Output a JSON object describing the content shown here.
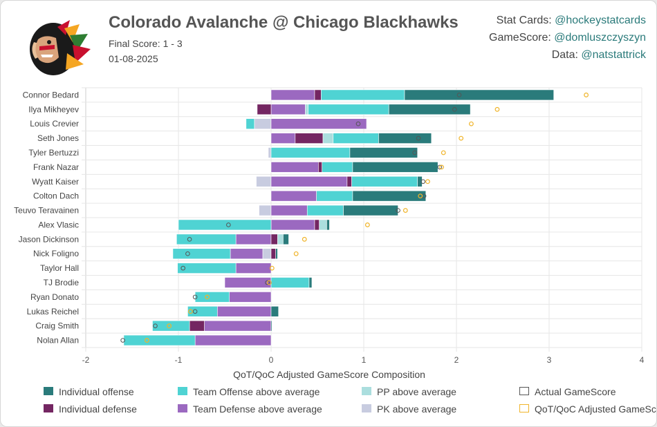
{
  "header": {
    "title": "Colorado Avalanche @ Chicago Blackhawks",
    "final_score": "Final Score: 1 - 3",
    "date": "01-08-2025"
  },
  "credits": [
    {
      "label": "Stat Cards:",
      "handle": "@hockeystatcards"
    },
    {
      "label": "GameScore:",
      "handle": "@domluszczyszyn"
    },
    {
      "label": "Data:",
      "handle": "@natstattrick"
    }
  ],
  "colors": {
    "individual_offense": "#2a7b7b",
    "individual_defense": "#742662",
    "team_offense": "#4fd3d3",
    "team_defense": "#9b69c0",
    "pp": "#abdede",
    "pk": "#c8cce0",
    "actual_marker": "#555555",
    "adjusted_marker": "#f0b429",
    "grid": "#e6e6e6"
  },
  "chart_data": {
    "type": "bar",
    "stacked": true,
    "orientation": "horizontal",
    "xlabel": "QoT/QoC Adjusted GameScore Composition",
    "xlim": [
      -2,
      4
    ],
    "xticks": [
      "-2",
      "-1",
      "0",
      "1",
      "2",
      "3",
      "4"
    ],
    "categories": [
      "Connor Bedard",
      "Ilya Mikheyev",
      "Louis Crevier",
      "Seth Jones",
      "Tyler Bertuzzi",
      "Frank Nazar",
      "Wyatt Kaiser",
      "Colton Dach",
      "Teuvo Teravainen",
      "Alex Vlasic",
      "Jason Dickinson",
      "Nick Foligno",
      "Taylor Hall",
      "TJ Brodie",
      "Ryan Donato",
      "Lukas Reichel",
      "Craig Smith",
      "Nolan Allan"
    ],
    "segment_order": [
      "pk",
      "team_defense",
      "individual_defense",
      "pp",
      "team_offense",
      "individual_offense"
    ],
    "series": [
      {
        "key": "team_defense",
        "name": "Team Defense above average",
        "values": [
          0.47,
          0.37,
          1.03,
          0.26,
          0.0,
          0.51,
          0.82,
          0.49,
          0.39,
          0.47,
          -0.38,
          -0.35,
          -0.38,
          -0.5,
          -0.45,
          -0.58,
          -0.72,
          -0.82
        ]
      },
      {
        "key": "individual_defense",
        "name": "Individual defense",
        "values": [
          0.07,
          -0.15,
          0.0,
          0.3,
          0.0,
          0.04,
          0.05,
          0.0,
          0.0,
          0.05,
          0.07,
          0.05,
          0.0,
          0.0,
          0.0,
          0.0,
          -0.16,
          0.0
        ]
      },
      {
        "key": "pp",
        "name": "PP above average",
        "values": [
          0.0,
          0.03,
          0.0,
          0.11,
          0.0,
          0.0,
          0.0,
          0.0,
          0.0,
          0.08,
          0.06,
          0.0,
          0.0,
          0.0,
          0.0,
          0.0,
          0.0,
          0.0
        ]
      },
      {
        "key": "pk",
        "name": "PK above average",
        "values": [
          0.0,
          0.0,
          -0.18,
          0.0,
          -0.03,
          0.0,
          -0.16,
          0.0,
          -0.13,
          0.0,
          0.0,
          -0.09,
          0.0,
          0.0,
          0.0,
          0.0,
          0.0,
          0.0
        ]
      },
      {
        "key": "team_offense",
        "name": "Team Offense above average",
        "values": [
          0.9,
          0.87,
          -0.09,
          0.49,
          0.85,
          0.33,
          0.71,
          0.39,
          0.39,
          -1.0,
          -0.64,
          -0.62,
          -0.63,
          0.41,
          -0.37,
          -0.32,
          -0.4,
          -0.77
        ]
      },
      {
        "key": "individual_offense",
        "name": "Individual offense",
        "values": [
          1.61,
          0.88,
          0.0,
          0.57,
          0.73,
          0.92,
          0.05,
          0.79,
          0.59,
          0.03,
          0.06,
          0.02,
          0.0,
          0.03,
          0.0,
          0.08,
          0.01,
          0.0
        ]
      }
    ],
    "actual_gamescore": [
      2.03,
      1.98,
      0.94,
      1.59,
      1.55,
      1.82,
      1.64,
      1.65,
      1.37,
      -0.46,
      -0.88,
      -0.9,
      -0.95,
      -0.04,
      -0.82,
      -0.82,
      -1.25,
      -1.6
    ],
    "adjusted_gamescore": [
      3.4,
      2.44,
      2.16,
      2.05,
      1.86,
      1.84,
      1.69,
      1.61,
      1.45,
      1.04,
      0.36,
      0.27,
      0.01,
      -0.02,
      -0.69,
      -0.87,
      -1.1,
      -1.34
    ],
    "legend": {
      "placement": "bottom",
      "items": [
        {
          "key": "individual_offense",
          "label": "Individual offense",
          "style": "fill"
        },
        {
          "key": "team_offense",
          "label": "Team Offense above average",
          "style": "fill"
        },
        {
          "key": "pp",
          "label": "PP above average",
          "style": "fill"
        },
        {
          "key": "actual_marker",
          "label": "Actual GameScore",
          "style": "outline"
        },
        {
          "key": "individual_defense",
          "label": "Individual defense",
          "style": "fill"
        },
        {
          "key": "team_defense",
          "label": "Team Defense above average",
          "style": "fill"
        },
        {
          "key": "pk",
          "label": "PK above average",
          "style": "fill"
        },
        {
          "key": "adjusted_marker",
          "label": "QoT/QoC Adjusted GameScore",
          "style": "outline"
        }
      ]
    }
  }
}
